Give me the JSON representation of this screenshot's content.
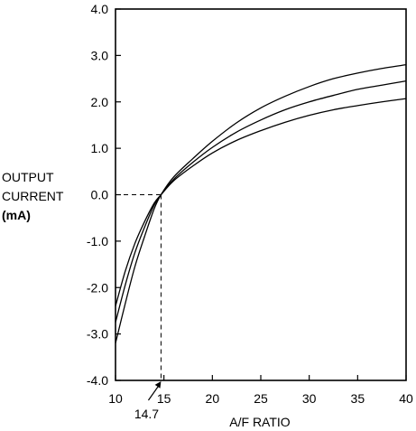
{
  "chart_data": {
    "type": "line",
    "xlabel": "A/F RATIO",
    "ylabel_lines": [
      "OUTPUT",
      "CURRENT"
    ],
    "ylabel_unit": "(mA)",
    "xlim": [
      10,
      40
    ],
    "ylim": [
      -4,
      4
    ],
    "x_ticks": [
      10,
      15,
      20,
      25,
      30,
      35,
      40
    ],
    "x_tick_labels": [
      "10",
      "15",
      "20",
      "25",
      "30",
      "35",
      "40"
    ],
    "y_ticks": [
      4,
      3,
      2,
      1,
      0,
      -1,
      -2,
      -3,
      -4
    ],
    "y_tick_labels": [
      "4.0",
      "3.0",
      "2.0",
      "1.0",
      "0.0",
      "-1.0",
      "-2.0",
      "-3.0",
      "-4.0"
    ],
    "annotation": {
      "label": "14.7",
      "x": 14.7,
      "y": 0
    },
    "grid": false,
    "series": [
      {
        "x": [
          10,
          11,
          12,
          13,
          14,
          14.7,
          16,
          18,
          20,
          22.5,
          25,
          27.5,
          30,
          32.5,
          35,
          37.5,
          40
        ],
        "values": [
          -2.4,
          -1.65,
          -1.05,
          -0.58,
          -0.18,
          0,
          0.3,
          0.62,
          0.9,
          1.17,
          1.38,
          1.56,
          1.71,
          1.83,
          1.92,
          2.0,
          2.07
        ]
      },
      {
        "x": [
          10,
          11,
          12,
          13,
          14,
          14.7,
          16,
          18,
          20,
          22.5,
          25,
          27.5,
          30,
          32.5,
          35,
          37.5,
          40
        ],
        "values": [
          -2.75,
          -1.95,
          -1.25,
          -0.7,
          -0.22,
          0,
          0.33,
          0.7,
          1.02,
          1.35,
          1.61,
          1.83,
          2.0,
          2.14,
          2.27,
          2.36,
          2.45
        ]
      },
      {
        "x": [
          10,
          11,
          12,
          13,
          14,
          14.7,
          16,
          18,
          20,
          22.5,
          25,
          27.5,
          30,
          32.5,
          35,
          37.5,
          40
        ],
        "values": [
          -3.2,
          -2.35,
          -1.55,
          -0.9,
          -0.3,
          0,
          0.38,
          0.78,
          1.15,
          1.55,
          1.87,
          2.12,
          2.33,
          2.5,
          2.62,
          2.72,
          2.8
        ]
      }
    ]
  }
}
